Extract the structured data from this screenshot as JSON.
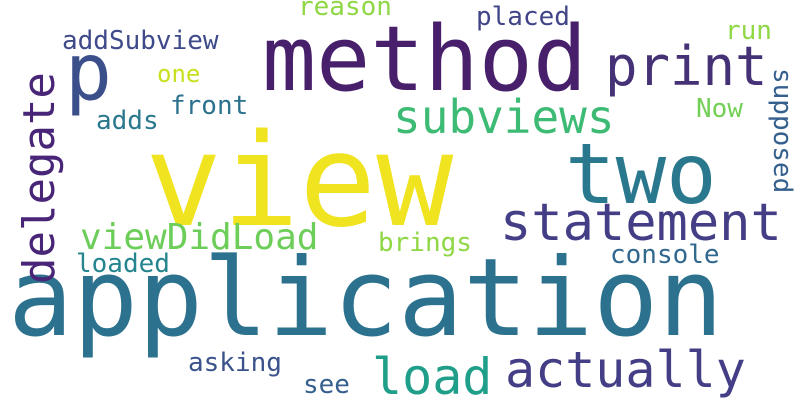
{
  "words": {
    "view": "view",
    "application": "application",
    "method": "method",
    "two": "two",
    "p": "p",
    "print": "print",
    "subviews": "subviews",
    "statement": "statement",
    "delegate": "delegate",
    "actually": "actually",
    "load": "load",
    "viewDidLoad": "viewDidLoad",
    "addSubview": "addSubview",
    "placed": "placed",
    "reason": "reason",
    "run": "run",
    "supposed": "supposed",
    "Now": "Now",
    "one": "one",
    "front": "front",
    "adds": "adds",
    "brings": "brings",
    "console": "console",
    "loaded": "loaded",
    "asking": "asking",
    "see": "see"
  },
  "colors": {
    "yellow": "#f0e31f",
    "teal": "#2a7a8c",
    "purple": "#45246a",
    "indigo": "#3b4a8a",
    "green": "#3dbb74",
    "darkgreen": "#1f9e89",
    "lightgreen": "#8fcf50",
    "dark": "#482576"
  }
}
